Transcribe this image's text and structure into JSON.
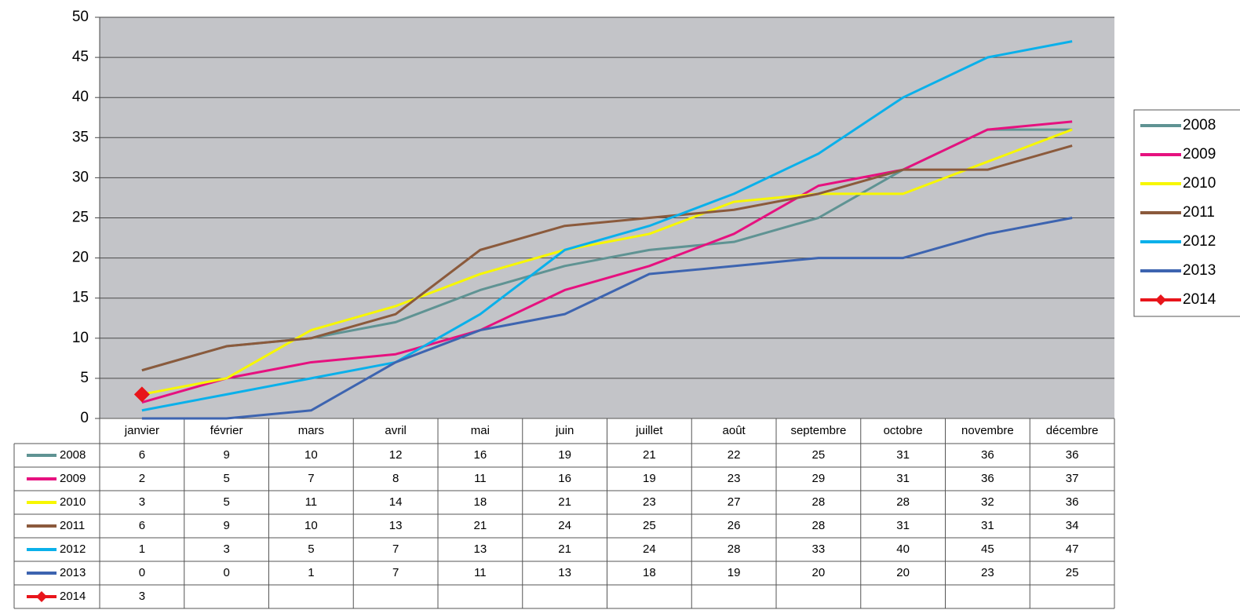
{
  "chart_data": {
    "type": "line",
    "categories": [
      "janvier",
      "février",
      "mars",
      "avril",
      "mai",
      "juin",
      "juillet",
      "août",
      "septembre",
      "octobre",
      "novembre",
      "décembre"
    ],
    "series": [
      {
        "name": "2008",
        "color": "#5f9393",
        "values": [
          6,
          9,
          10,
          12,
          16,
          19,
          21,
          22,
          25,
          31,
          36,
          36
        ]
      },
      {
        "name": "2009",
        "color": "#e6117f",
        "values": [
          2,
          5,
          7,
          8,
          11,
          16,
          19,
          23,
          29,
          31,
          36,
          37
        ]
      },
      {
        "name": "2010",
        "color": "#f7f700",
        "values": [
          3,
          5,
          11,
          14,
          18,
          21,
          23,
          27,
          28,
          28,
          32,
          36
        ]
      },
      {
        "name": "2011",
        "color": "#8b5a3c",
        "values": [
          6,
          9,
          10,
          13,
          21,
          24,
          25,
          26,
          28,
          31,
          31,
          34
        ]
      },
      {
        "name": "2012",
        "color": "#0ab0ea",
        "values": [
          1,
          3,
          5,
          7,
          13,
          21,
          24,
          28,
          33,
          40,
          45,
          47
        ]
      },
      {
        "name": "2013",
        "color": "#3d64b0",
        "values": [
          0,
          0,
          1,
          7,
          11,
          13,
          18,
          19,
          20,
          20,
          23,
          25
        ]
      },
      {
        "name": "2014",
        "color": "#e8151b",
        "marker": "diamond",
        "values": [
          3,
          null,
          null,
          null,
          null,
          null,
          null,
          null,
          null,
          null,
          null,
          null
        ]
      }
    ],
    "ylim": [
      0,
      50
    ],
    "yticks": [
      0,
      5,
      10,
      15,
      20,
      25,
      30,
      35,
      40,
      45,
      50
    ],
    "grid": true,
    "legend": "right"
  }
}
